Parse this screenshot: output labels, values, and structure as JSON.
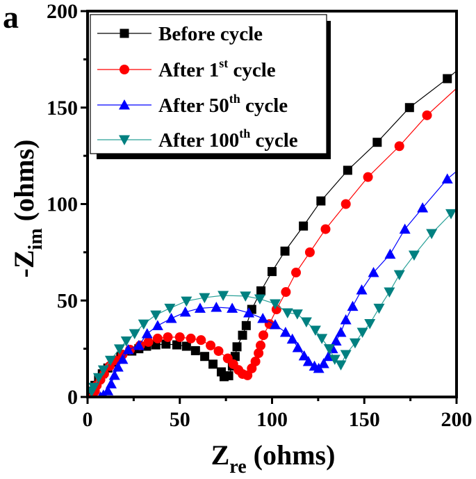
{
  "panel_label": "a",
  "chart_data": {
    "type": "scatter",
    "title": "",
    "xlabel": {
      "main": "Z",
      "sub": "re",
      "unit": " (ohms)"
    },
    "ylabel": {
      "main": "-Z",
      "sub": "im",
      "unit": " (ohms)"
    },
    "xlim": [
      0,
      200
    ],
    "ylim": [
      0,
      200
    ],
    "xticks": [
      0,
      50,
      100,
      150,
      200
    ],
    "yticks": [
      0,
      50,
      100,
      150,
      200
    ],
    "grid": false,
    "legend_position": "top-left",
    "series": [
      {
        "name": "Before cycle",
        "legend": {
          "pre": "Before cycle",
          "sup": "",
          "post": ""
        },
        "color": "#000000",
        "line_color": "#000000",
        "marker": "square",
        "points": [
          [
            2,
            0
          ],
          [
            3,
            3
          ],
          [
            4,
            6
          ],
          [
            6,
            9
          ],
          [
            8,
            12
          ],
          [
            11,
            15
          ],
          [
            14,
            18
          ],
          [
            18,
            21
          ],
          [
            24,
            23.8
          ],
          [
            27.8,
            25
          ],
          [
            32,
            26.3
          ],
          [
            37,
            27
          ],
          [
            42.5,
            27.4
          ],
          [
            48.4,
            27
          ],
          [
            53.6,
            26.3
          ],
          [
            58.5,
            24
          ],
          [
            63.5,
            21
          ],
          [
            68,
            17
          ],
          [
            72.5,
            13
          ],
          [
            74,
            10.5
          ],
          [
            76.5,
            11
          ],
          [
            78.5,
            16
          ],
          [
            80,
            21
          ],
          [
            81,
            26
          ],
          [
            84,
            32
          ],
          [
            86,
            37
          ],
          [
            89,
            45.4
          ],
          [
            94,
            55
          ],
          [
            100,
            65
          ],
          [
            107,
            75.6
          ],
          [
            117,
            88.6
          ],
          [
            126.5,
            101.6
          ],
          [
            141,
            117.5
          ],
          [
            157,
            132
          ],
          [
            174.5,
            150
          ],
          [
            195,
            165
          ],
          [
            200,
            169
          ]
        ]
      },
      {
        "name": "After 1st cycle",
        "legend": {
          "pre": "After 1",
          "sup": "st",
          "post": " cycle"
        },
        "color": "#ff0000",
        "line_color": "#ff0000",
        "marker": "circle",
        "points": [
          [
            3,
            0
          ],
          [
            4,
            3
          ],
          [
            5,
            6
          ],
          [
            7,
            9
          ],
          [
            9,
            12
          ],
          [
            12,
            16
          ],
          [
            15,
            19
          ],
          [
            19,
            22
          ],
          [
            23,
            24.5
          ],
          [
            28.5,
            26.7
          ],
          [
            33,
            28.5
          ],
          [
            38,
            30.3
          ],
          [
            43.5,
            31
          ],
          [
            50,
            31
          ],
          [
            56,
            30.3
          ],
          [
            61.5,
            29.5
          ],
          [
            66.7,
            26.7
          ],
          [
            71,
            23.8
          ],
          [
            76,
            20
          ],
          [
            79,
            17
          ],
          [
            81.8,
            14
          ],
          [
            84,
            11.9
          ],
          [
            86.7,
            11.2
          ],
          [
            89,
            14.8
          ],
          [
            91,
            18.4
          ],
          [
            92.7,
            22.7
          ],
          [
            93.8,
            26.7
          ],
          [
            95.3,
            32
          ],
          [
            98.6,
            37.8
          ],
          [
            102.4,
            45.4
          ],
          [
            107.5,
            54.4
          ],
          [
            113,
            64.5
          ],
          [
            120.5,
            75
          ],
          [
            129,
            87
          ],
          [
            140,
            100
          ],
          [
            152,
            114
          ],
          [
            169,
            130
          ],
          [
            184,
            146
          ],
          [
            200,
            160
          ]
        ]
      },
      {
        "name": "After 50th cycle",
        "legend": {
          "pre": "After 50",
          "sup": "th",
          "post": " cycle"
        },
        "color": "#0000ff",
        "line_color": "#0000ff",
        "marker": "triangle-up",
        "points": [
          [
            7,
            0
          ],
          [
            8.6,
            1
          ],
          [
            11,
            3.2
          ],
          [
            12.8,
            6.8
          ],
          [
            14.6,
            11.2
          ],
          [
            16.5,
            15.5
          ],
          [
            19,
            19.5
          ],
          [
            22,
            24.5
          ],
          [
            27.8,
            26.7
          ],
          [
            32.3,
            32.8
          ],
          [
            38,
            37
          ],
          [
            45.4,
            40.7
          ],
          [
            53,
            44
          ],
          [
            61,
            46
          ],
          [
            69.8,
            46.5
          ],
          [
            78.4,
            46
          ],
          [
            87.4,
            43.6
          ],
          [
            95,
            40.7
          ],
          [
            101.7,
            37.5
          ],
          [
            107.3,
            33.5
          ],
          [
            111,
            30
          ],
          [
            114,
            25.6
          ],
          [
            117.4,
            21.3
          ],
          [
            119.7,
            18.4
          ],
          [
            123,
            16
          ],
          [
            125.3,
            14.8
          ],
          [
            128,
            17.3
          ],
          [
            130.6,
            21
          ],
          [
            132.8,
            25
          ],
          [
            134.7,
            29
          ],
          [
            137.3,
            33.5
          ],
          [
            140,
            40
          ],
          [
            143.7,
            47
          ],
          [
            148.6,
            55.5
          ],
          [
            155,
            64.5
          ],
          [
            164,
            74
          ],
          [
            172,
            87
          ],
          [
            181.6,
            98
          ],
          [
            195,
            113
          ],
          [
            200,
            117
          ]
        ]
      },
      {
        "name": "After 100th cycle",
        "legend": {
          "pre": "After 100",
          "sup": "th",
          "post": " cycle"
        },
        "color": "#008080",
        "line_color": "#2aa198",
        "marker": "triangle-down",
        "points": [
          [
            2.2,
            2.8
          ],
          [
            3.4,
            5
          ],
          [
            6,
            10
          ],
          [
            8.6,
            14
          ],
          [
            12.4,
            19
          ],
          [
            17.3,
            24.9
          ],
          [
            21,
            29
          ],
          [
            25.5,
            32.8
          ],
          [
            30.4,
            37.8
          ],
          [
            37,
            42.5
          ],
          [
            44.6,
            46
          ],
          [
            53.6,
            49.7
          ],
          [
            63.4,
            51.5
          ],
          [
            73.5,
            52.6
          ],
          [
            85.6,
            52.3
          ],
          [
            93.4,
            50.8
          ],
          [
            101.7,
            48.3
          ],
          [
            108.4,
            43.6
          ],
          [
            113.7,
            43
          ],
          [
            118.6,
            38.9
          ],
          [
            123.5,
            34.6
          ],
          [
            127,
            30.3
          ],
          [
            131,
            25
          ],
          [
            134,
            19.5
          ],
          [
            137.3,
            16.6
          ],
          [
            140,
            22
          ],
          [
            145,
            28
          ],
          [
            149,
            33.5
          ],
          [
            153,
            38
          ],
          [
            158,
            46
          ],
          [
            163.6,
            54.4
          ],
          [
            169,
            63.4
          ],
          [
            177,
            73.5
          ],
          [
            186.5,
            84.7
          ],
          [
            197,
            95
          ],
          [
            200,
            98
          ]
        ]
      }
    ]
  }
}
